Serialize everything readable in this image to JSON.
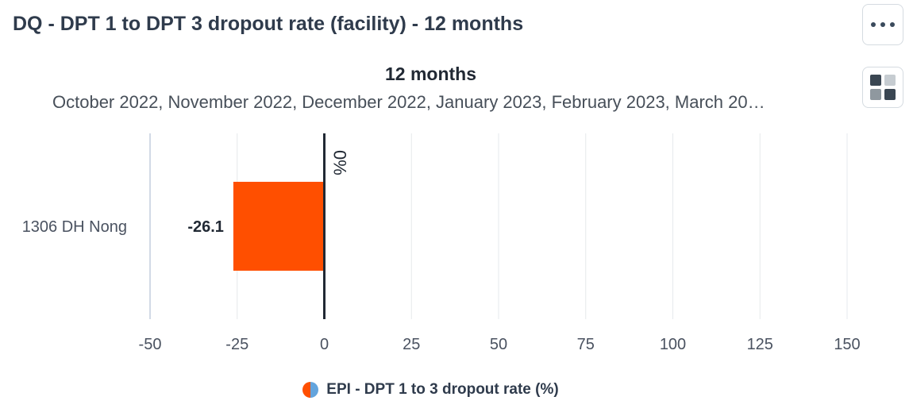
{
  "header": {
    "title": "DQ - DPT 1 to DPT 3 dropout rate (facility) - 12 months",
    "more_icon": "more-horizontal-icon",
    "layout_icon": "grid-layout-icon"
  },
  "chart_data": {
    "type": "bar",
    "orientation": "horizontal",
    "title": "12 months",
    "subtitle": "October 2022, November 2022, December 2022, January 2023, February 2023, March 20…",
    "categories": [
      "1306 DH Nong"
    ],
    "series": [
      {
        "name": "EPI - DPT 1 to 3 dropout rate (%)",
        "values": [
          -26.1
        ],
        "color": "#ff4f00"
      }
    ],
    "data_labels": [
      "-26.1"
    ],
    "xlim": [
      -50,
      150
    ],
    "xticks": [
      -50,
      -25,
      0,
      25,
      50,
      75,
      100,
      125,
      150
    ],
    "reference_line": {
      "value": 0,
      "label": "0%"
    },
    "grid": true,
    "legend": {
      "position": "bottom",
      "swatch_colors": [
        "#ff4f00",
        "#63a4dd"
      ]
    }
  }
}
